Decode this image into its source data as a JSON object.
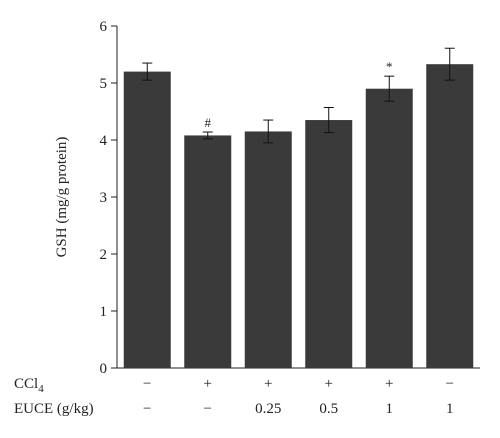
{
  "chart_data": {
    "type": "bar",
    "ylabel": "GSH (mg/g protein)",
    "ylim": [
      0,
      6
    ],
    "yticks": [
      "0",
      "1",
      "2",
      "3",
      "4",
      "5",
      "6"
    ],
    "grid": false,
    "bar_color": "#3a3a3a",
    "values": [
      5.2,
      4.08,
      4.15,
      4.35,
      4.9,
      5.33
    ],
    "errors": [
      0.15,
      0.06,
      0.2,
      0.22,
      0.22,
      0.28
    ],
    "annotations": [
      "",
      "#",
      "",
      "",
      "*",
      ""
    ],
    "treatment_rows": [
      {
        "name": "CCl",
        "name_sub": "4",
        "values": [
          "−",
          "+",
          "+",
          "+",
          "+",
          "−"
        ]
      },
      {
        "name": "EUCE (g/kg)",
        "name_sub": "",
        "values": [
          "−",
          "−",
          "0.25",
          "0.5",
          "1",
          "1"
        ]
      }
    ]
  }
}
